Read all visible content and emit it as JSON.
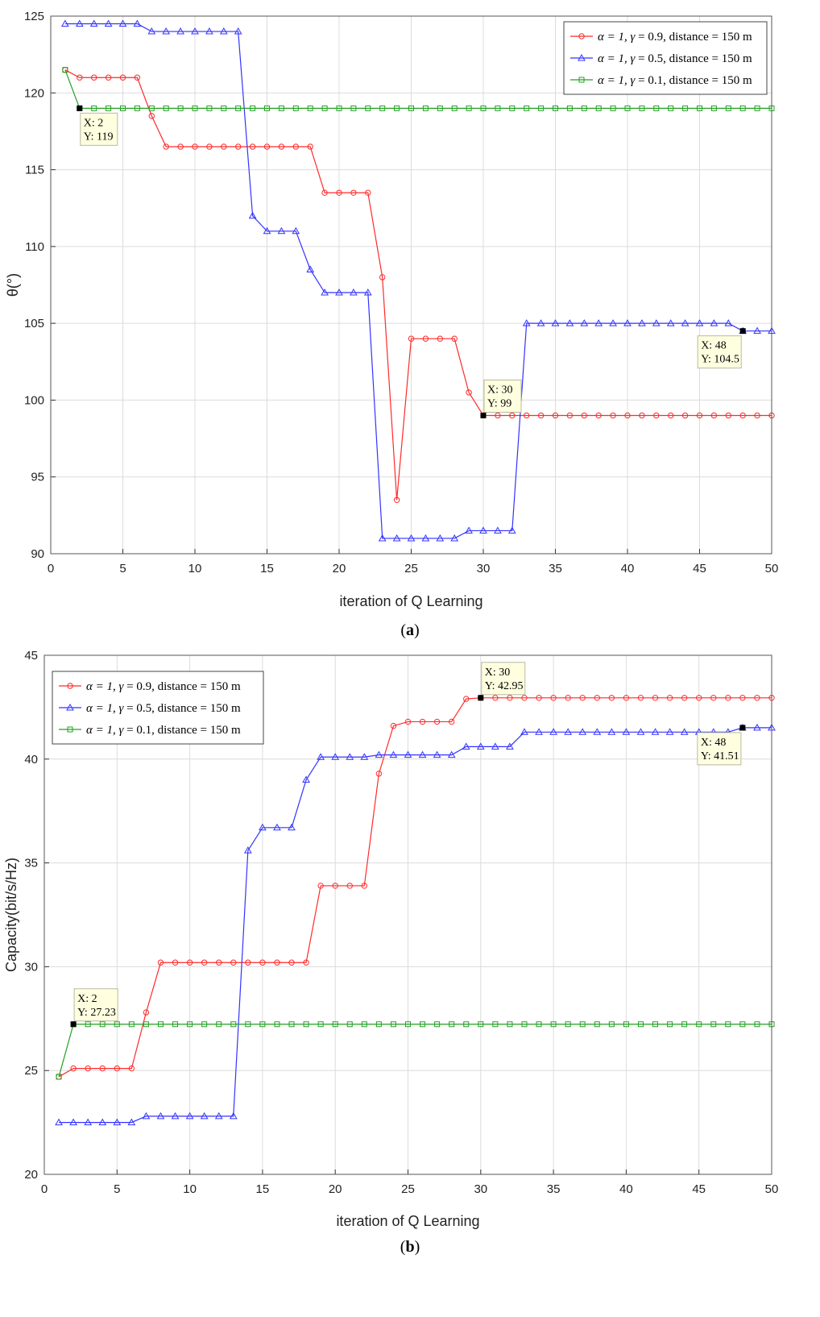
{
  "chart_data": [
    {
      "type": "line",
      "caption_letter": "a",
      "xlabel": "iteration of Q Learning",
      "ylabel": "θ(°)",
      "xlim": [
        0,
        50
      ],
      "ylim": [
        90,
        125
      ],
      "xticks": [
        0,
        5,
        10,
        15,
        20,
        25,
        30,
        35,
        40,
        45,
        50
      ],
      "yticks": [
        90,
        95,
        100,
        105,
        110,
        115,
        120,
        125
      ],
      "grid": true,
      "legend_position": "top-right",
      "x": [
        1,
        2,
        3,
        4,
        5,
        6,
        7,
        8,
        9,
        10,
        11,
        12,
        13,
        14,
        15,
        16,
        17,
        18,
        19,
        20,
        21,
        22,
        23,
        24,
        25,
        26,
        27,
        28,
        29,
        30,
        31,
        32,
        33,
        34,
        35,
        36,
        37,
        38,
        39,
        40,
        41,
        42,
        43,
        44,
        45,
        46,
        47,
        48,
        49,
        50
      ],
      "series": [
        {
          "name": "α = 1, γ = 0.9, distance = 150 m",
          "legend_prefix": "α = 1, ",
          "legend_gamma": "γ",
          "legend_suffix": " = 0.9, distance = 150 m",
          "color": "#ff2a2a",
          "marker": "circle",
          "values": [
            121.5,
            121,
            121,
            121,
            121,
            121,
            118.5,
            116.5,
            116.5,
            116.5,
            116.5,
            116.5,
            116.5,
            116.5,
            116.5,
            116.5,
            116.5,
            116.5,
            113.5,
            113.5,
            113.5,
            113.5,
            108,
            93.5,
            104,
            104,
            104,
            104,
            100.5,
            99,
            99,
            99,
            99,
            99,
            99,
            99,
            99,
            99,
            99,
            99,
            99,
            99,
            99,
            99,
            99,
            99,
            99,
            99,
            99,
            99
          ]
        },
        {
          "name": "α = 1, γ = 0.5, distance = 150 m",
          "legend_prefix": "α = 1, ",
          "legend_gamma": "γ",
          "legend_suffix": " = 0.5, distance = 150 m",
          "color": "#3333ff",
          "marker": "triangle",
          "values": [
            124.5,
            124.5,
            124.5,
            124.5,
            124.5,
            124.5,
            124,
            124,
            124,
            124,
            124,
            124,
            124,
            112,
            111,
            111,
            111,
            108.5,
            107,
            107,
            107,
            107,
            91,
            91,
            91,
            91,
            91,
            91,
            91.5,
            91.5,
            91.5,
            91.5,
            105,
            105,
            105,
            105,
            105,
            105,
            105,
            105,
            105,
            105,
            105,
            105,
            105,
            105,
            105,
            104.5,
            104.5,
            104.5
          ]
        },
        {
          "name": "α = 1, γ = 0.1, distance = 150 m",
          "legend_prefix": "α = 1, ",
          "legend_gamma": "γ",
          "legend_suffix": " = 0.1, distance = 150 m",
          "color": "#22a022",
          "marker": "square",
          "values": [
            121.5,
            119,
            119,
            119,
            119,
            119,
            119,
            119,
            119,
            119,
            119,
            119,
            119,
            119,
            119,
            119,
            119,
            119,
            119,
            119,
            119,
            119,
            119,
            119,
            119,
            119,
            119,
            119,
            119,
            119,
            119,
            119,
            119,
            119,
            119,
            119,
            119,
            119,
            119,
            119,
            119,
            119,
            119,
            119,
            119,
            119,
            119,
            119,
            119,
            119
          ]
        }
      ],
      "annotations": [
        {
          "x": 2,
          "y": 119,
          "line1": "X: 2",
          "line2": "Y: 119",
          "side": "below"
        },
        {
          "x": 30,
          "y": 99,
          "line1": "X: 30",
          "line2": "Y: 99",
          "side": "above"
        },
        {
          "x": 48,
          "y": 104.5,
          "line1": "X: 48",
          "line2": "Y: 104.5",
          "side": "below-left"
        }
      ]
    },
    {
      "type": "line",
      "caption_letter": "b",
      "xlabel": "iteration of Q Learning",
      "ylabel": "Capacity(bit/s/Hz)",
      "xlim": [
        0,
        50
      ],
      "ylim": [
        20,
        45
      ],
      "xticks": [
        0,
        5,
        10,
        15,
        20,
        25,
        30,
        35,
        40,
        45,
        50
      ],
      "yticks": [
        20,
        25,
        30,
        35,
        40,
        45
      ],
      "grid": true,
      "legend_position": "top-left",
      "x": [
        1,
        2,
        3,
        4,
        5,
        6,
        7,
        8,
        9,
        10,
        11,
        12,
        13,
        14,
        15,
        16,
        17,
        18,
        19,
        20,
        21,
        22,
        23,
        24,
        25,
        26,
        27,
        28,
        29,
        30,
        31,
        32,
        33,
        34,
        35,
        36,
        37,
        38,
        39,
        40,
        41,
        42,
        43,
        44,
        45,
        46,
        47,
        48,
        49,
        50
      ],
      "series": [
        {
          "name": "α = 1, γ = 0.9, distance = 150 m",
          "legend_prefix": "α = 1, ",
          "legend_gamma": "γ",
          "legend_suffix": " = 0.9, distance = 150 m",
          "color": "#ff2a2a",
          "marker": "circle",
          "values": [
            24.7,
            25.1,
            25.1,
            25.1,
            25.1,
            25.1,
            27.8,
            30.2,
            30.2,
            30.2,
            30.2,
            30.2,
            30.2,
            30.2,
            30.2,
            30.2,
            30.2,
            30.2,
            33.9,
            33.9,
            33.9,
            33.9,
            39.3,
            41.6,
            41.8,
            41.8,
            41.8,
            41.8,
            42.9,
            42.95,
            42.95,
            42.95,
            42.95,
            42.95,
            42.95,
            42.95,
            42.95,
            42.95,
            42.95,
            42.95,
            42.95,
            42.95,
            42.95,
            42.95,
            42.95,
            42.95,
            42.95,
            42.95,
            42.95,
            42.95
          ]
        },
        {
          "name": "α = 1, γ = 0.5, distance = 150 m",
          "legend_prefix": "α = 1, ",
          "legend_gamma": "γ",
          "legend_suffix": " = 0.5, distance = 150 m",
          "color": "#3333ff",
          "marker": "triangle",
          "values": [
            22.5,
            22.5,
            22.5,
            22.5,
            22.5,
            22.5,
            22.8,
            22.8,
            22.8,
            22.8,
            22.8,
            22.8,
            22.8,
            35.6,
            36.7,
            36.7,
            36.7,
            39,
            40.1,
            40.1,
            40.1,
            40.1,
            40.2,
            40.2,
            40.2,
            40.2,
            40.2,
            40.2,
            40.6,
            40.6,
            40.6,
            40.6,
            41.3,
            41.3,
            41.3,
            41.3,
            41.3,
            41.3,
            41.3,
            41.3,
            41.3,
            41.3,
            41.3,
            41.3,
            41.3,
            41.3,
            41.3,
            41.51,
            41.51,
            41.51
          ]
        },
        {
          "name": "α = 1, γ = 0.1, distance = 150 m",
          "legend_prefix": "α = 1, ",
          "legend_gamma": "γ",
          "legend_suffix": " = 0.1, distance = 150 m",
          "color": "#22a022",
          "marker": "square",
          "values": [
            24.7,
            27.23,
            27.23,
            27.23,
            27.23,
            27.23,
            27.23,
            27.23,
            27.23,
            27.23,
            27.23,
            27.23,
            27.23,
            27.23,
            27.23,
            27.23,
            27.23,
            27.23,
            27.23,
            27.23,
            27.23,
            27.23,
            27.23,
            27.23,
            27.23,
            27.23,
            27.23,
            27.23,
            27.23,
            27.23,
            27.23,
            27.23,
            27.23,
            27.23,
            27.23,
            27.23,
            27.23,
            27.23,
            27.23,
            27.23,
            27.23,
            27.23,
            27.23,
            27.23,
            27.23,
            27.23,
            27.23,
            27.23,
            27.23,
            27.23
          ]
        }
      ],
      "annotations": [
        {
          "x": 2,
          "y": 27.23,
          "line1": "X: 2",
          "line2": "Y: 27.23",
          "side": "above"
        },
        {
          "x": 30,
          "y": 42.95,
          "line1": "X: 30",
          "line2": "Y: 42.95",
          "side": "above"
        },
        {
          "x": 48,
          "y": 41.51,
          "line1": "X: 48",
          "line2": "Y: 41.51",
          "side": "below-left"
        }
      ]
    }
  ]
}
